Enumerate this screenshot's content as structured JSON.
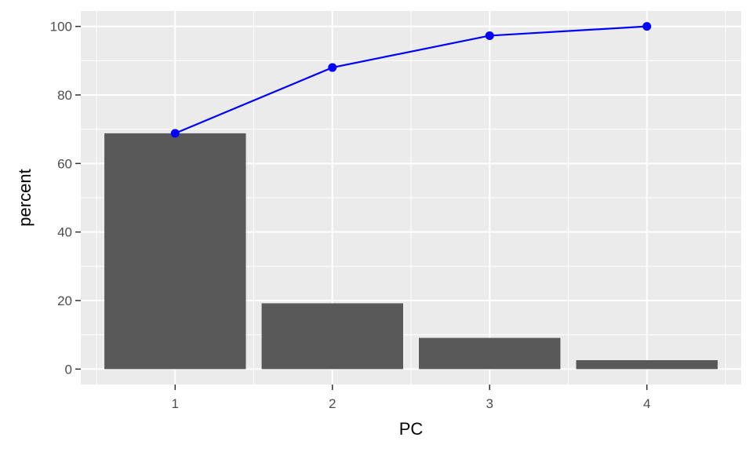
{
  "chart_data": {
    "type": "bar",
    "categories": [
      "1",
      "2",
      "3",
      "4"
    ],
    "series": [
      {
        "type": "bar",
        "values": [
          68.8,
          19.2,
          9.1,
          2.6
        ]
      },
      {
        "type": "line",
        "values": [
          68.8,
          88.0,
          97.3,
          100.0
        ],
        "color": "#0000ff"
      }
    ],
    "xlabel": "PC",
    "ylabel": "percent",
    "ylim": [
      -4.5,
      104.5
    ],
    "yticks": [
      0,
      20,
      40,
      60,
      80,
      100
    ],
    "grid": true,
    "colors": {
      "bar": "#595959",
      "panel": "#ebebeb",
      "grid": "#ffffff",
      "line": "#0000ff"
    }
  }
}
